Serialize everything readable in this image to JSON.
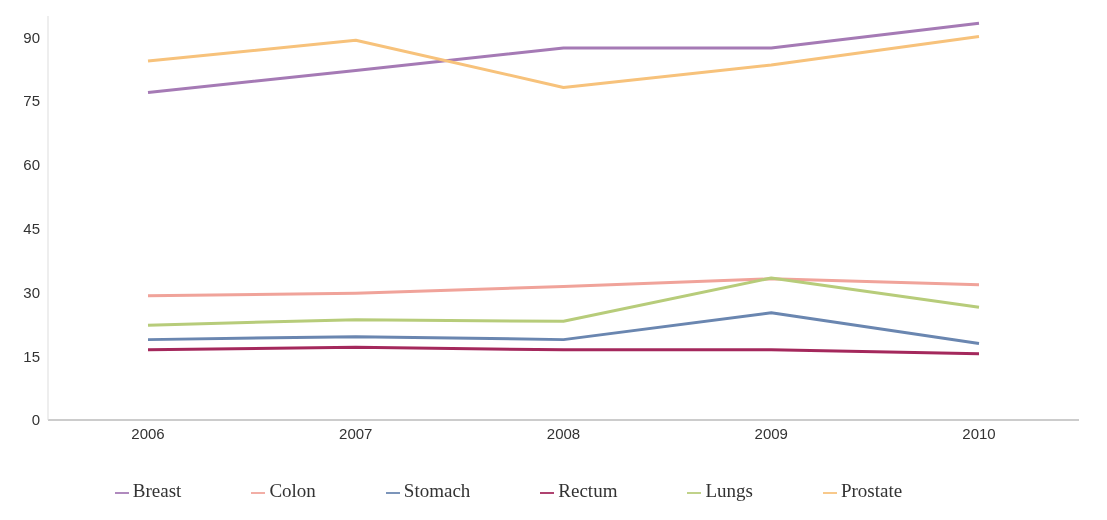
{
  "chart_data": {
    "type": "line",
    "categories": [
      "2006",
      "2007",
      "2008",
      "2009",
      "2010"
    ],
    "series": [
      {
        "name": "Breast",
        "color": "#a57ab5",
        "values": [
          77,
          82.2,
          87.5,
          87.5,
          93.3
        ]
      },
      {
        "name": "Colon",
        "color": "#f0a39a",
        "values": [
          29.2,
          29.8,
          31.4,
          33.2,
          31.8
        ]
      },
      {
        "name": "Stomach",
        "color": "#6a86b0",
        "values": [
          18.9,
          19.6,
          18.9,
          25.2,
          18
        ]
      },
      {
        "name": "Rectum",
        "color": "#a4285c",
        "values": [
          16.5,
          17.1,
          16.5,
          16.5,
          15.6
        ]
      },
      {
        "name": "Lungs",
        "color": "#b7cc7a",
        "values": [
          22.3,
          23.6,
          23.2,
          33.4,
          26.5
        ]
      },
      {
        "name": "Prostate",
        "color": "#f7c27b",
        "values": [
          84.4,
          89.3,
          78.2,
          83.5,
          90.2
        ]
      }
    ],
    "ylim": [
      0,
      95
    ],
    "yticks": [
      0,
      15,
      30,
      45,
      60,
      75,
      90
    ],
    "grid": false,
    "legend": "bottom",
    "marker": "none",
    "line_style": "solid"
  }
}
